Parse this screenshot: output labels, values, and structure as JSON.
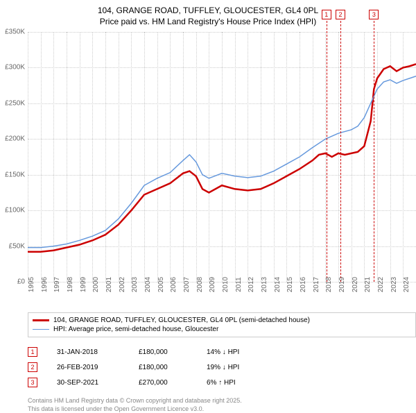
{
  "title": "104, GRANGE ROAD, TUFFLEY, GLOUCESTER, GL4 0PL",
  "subtitle": "Price paid vs. HM Land Registry's House Price Index (HPI)",
  "chart": {
    "type": "line",
    "ylim": [
      0,
      350000
    ],
    "ytick_step": 50000,
    "ytick_labels": [
      "£0",
      "£50K",
      "£100K",
      "£150K",
      "£200K",
      "£250K",
      "£300K",
      "£350K"
    ],
    "xlim": [
      1995,
      2025
    ],
    "xticks": [
      1995,
      1996,
      1997,
      1998,
      1999,
      2000,
      2001,
      2002,
      2003,
      2004,
      2005,
      2006,
      2007,
      2008,
      2009,
      2010,
      2011,
      2012,
      2013,
      2014,
      2015,
      2016,
      2017,
      2018,
      2019,
      2020,
      2021,
      2022,
      2023,
      2024,
      2025
    ],
    "background_color": "#ffffff",
    "grid_color": "#cccccc",
    "series": [
      {
        "name": "property",
        "label": "104, GRANGE ROAD, TUFFLEY, GLOUCESTER, GL4 0PL (semi-detached house)",
        "color": "#cc0000",
        "width": 2.5,
        "data": [
          [
            1995,
            42000
          ],
          [
            1996,
            42000
          ],
          [
            1997,
            44000
          ],
          [
            1998,
            48000
          ],
          [
            1999,
            52000
          ],
          [
            2000,
            58000
          ],
          [
            2001,
            66000
          ],
          [
            2002,
            80000
          ],
          [
            2003,
            100000
          ],
          [
            2004,
            122000
          ],
          [
            2005,
            130000
          ],
          [
            2006,
            138000
          ],
          [
            2007,
            152000
          ],
          [
            2007.5,
            155000
          ],
          [
            2008,
            148000
          ],
          [
            2008.5,
            130000
          ],
          [
            2009,
            125000
          ],
          [
            2010,
            135000
          ],
          [
            2011,
            130000
          ],
          [
            2012,
            128000
          ],
          [
            2013,
            130000
          ],
          [
            2014,
            138000
          ],
          [
            2015,
            148000
          ],
          [
            2016,
            158000
          ],
          [
            2017,
            170000
          ],
          [
            2017.5,
            178000
          ],
          [
            2018,
            180000
          ],
          [
            2018.5,
            175000
          ],
          [
            2019,
            180000
          ],
          [
            2019.5,
            178000
          ],
          [
            2020,
            180000
          ],
          [
            2020.5,
            182000
          ],
          [
            2021,
            190000
          ],
          [
            2021.5,
            225000
          ],
          [
            2021.75,
            270000
          ],
          [
            2022,
            285000
          ],
          [
            2022.5,
            298000
          ],
          [
            2023,
            302000
          ],
          [
            2023.5,
            295000
          ],
          [
            2024,
            300000
          ],
          [
            2024.5,
            302000
          ],
          [
            2025,
            305000
          ]
        ]
      },
      {
        "name": "hpi",
        "label": "HPI: Average price, semi-detached house, Gloucester",
        "color": "#6699dd",
        "width": 1.5,
        "data": [
          [
            1995,
            48000
          ],
          [
            1996,
            48000
          ],
          [
            1997,
            50000
          ],
          [
            1998,
            53000
          ],
          [
            1999,
            58000
          ],
          [
            2000,
            64000
          ],
          [
            2001,
            72000
          ],
          [
            2002,
            88000
          ],
          [
            2003,
            110000
          ],
          [
            2004,
            135000
          ],
          [
            2005,
            145000
          ],
          [
            2006,
            153000
          ],
          [
            2007,
            170000
          ],
          [
            2007.5,
            178000
          ],
          [
            2008,
            168000
          ],
          [
            2008.5,
            150000
          ],
          [
            2009,
            145000
          ],
          [
            2010,
            152000
          ],
          [
            2011,
            148000
          ],
          [
            2012,
            146000
          ],
          [
            2013,
            148000
          ],
          [
            2014,
            155000
          ],
          [
            2015,
            165000
          ],
          [
            2016,
            175000
          ],
          [
            2017,
            188000
          ],
          [
            2018,
            200000
          ],
          [
            2019,
            208000
          ],
          [
            2020,
            213000
          ],
          [
            2020.5,
            218000
          ],
          [
            2021,
            230000
          ],
          [
            2021.5,
            250000
          ],
          [
            2022,
            270000
          ],
          [
            2022.5,
            280000
          ],
          [
            2023,
            283000
          ],
          [
            2023.5,
            278000
          ],
          [
            2024,
            282000
          ],
          [
            2024.5,
            285000
          ],
          [
            2025,
            288000
          ]
        ]
      }
    ],
    "markers": [
      {
        "id": "1",
        "x": 2018.08,
        "color": "#cc0000"
      },
      {
        "id": "2",
        "x": 2019.16,
        "color": "#cc0000"
      },
      {
        "id": "3",
        "x": 2021.75,
        "color": "#cc0000"
      }
    ]
  },
  "legend": {
    "items": [
      {
        "color": "#cc0000",
        "width": 2.5,
        "label": "104, GRANGE ROAD, TUFFLEY, GLOUCESTER, GL4 0PL (semi-detached house)"
      },
      {
        "color": "#6699dd",
        "width": 1.5,
        "label": "HPI: Average price, semi-detached house, Gloucester"
      }
    ]
  },
  "sales": [
    {
      "id": "1",
      "color": "#cc0000",
      "date": "31-JAN-2018",
      "price": "£180,000",
      "hpi": "14% ↓ HPI"
    },
    {
      "id": "2",
      "color": "#cc0000",
      "date": "26-FEB-2019",
      "price": "£180,000",
      "hpi": "19% ↓ HPI"
    },
    {
      "id": "3",
      "color": "#cc0000",
      "date": "30-SEP-2021",
      "price": "£270,000",
      "hpi": "6% ↑ HPI"
    }
  ],
  "footer": {
    "line1": "Contains HM Land Registry data © Crown copyright and database right 2025.",
    "line2": "This data is licensed under the Open Government Licence v3.0."
  }
}
